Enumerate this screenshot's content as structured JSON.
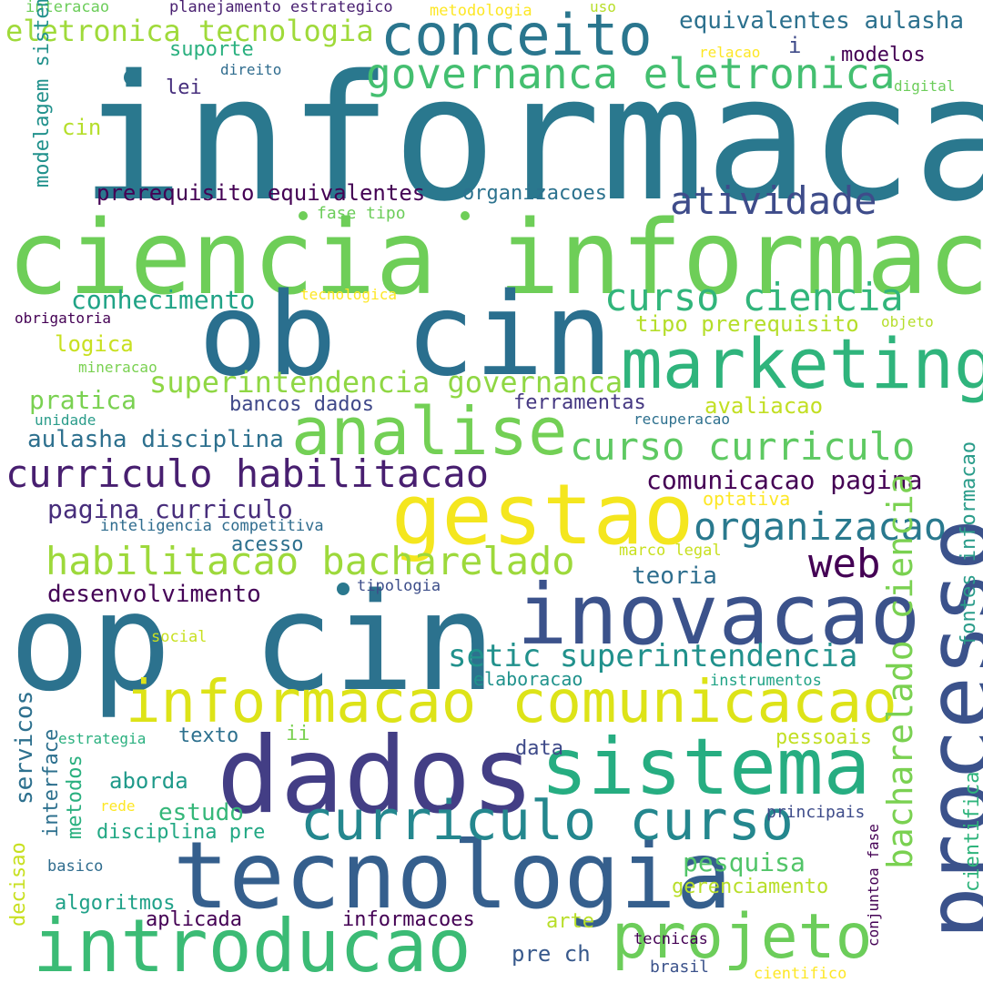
{
  "palette": {
    "dark_purple": "#482576",
    "indigo": "#414487",
    "blue": "#355f8d",
    "teal_blue": "#2a788e",
    "teal": "#21918c",
    "sea_green": "#22a884",
    "green": "#44bf70",
    "light_green": "#7ad151",
    "lime": "#bddf26",
    "yellow": "#fde725"
  },
  "words": [
    "informacao",
    "ciencia informacao",
    "ob cin",
    "op cin",
    "dados",
    "tecnologia",
    "gestao",
    "processo",
    "sistema",
    "inovacao",
    "introducao",
    "marketing",
    "analise",
    "informacao comunicacao",
    "curriculo curso",
    "projeto",
    "conceito",
    "curriculo habilitacao",
    "governanca eletronica",
    "habilitacao bacharelado",
    "curso ciencia",
    "curso curriculo",
    "bacharelado ciencia",
    "organizacao",
    "atividade",
    "setic superintendencia",
    "superintendencia governanca",
    "eletronica tecnologia",
    "web",
    "comunicacao pagina",
    "equivalentes aulasha",
    "prerequisito equivalentes",
    "aulasha disciplina",
    "pagina curriculo",
    "desenvolvimento",
    "fontes informacao",
    "conhecimento",
    "pratica",
    "organizacoes",
    "bancos dados",
    "ferramentas",
    "avaliacao",
    "teoria",
    "tipo prerequisito",
    "disciplina pre",
    "estudo",
    "aborda",
    "pesquisa",
    "algoritmos",
    "aplicada",
    "informacoes",
    "gerenciamento",
    "servicos",
    "cientifica",
    "conjuntoa fase",
    "modelagem sistemas",
    "inteligencia competitiva",
    "planejamento estrategico",
    "metodologia",
    "interacao",
    "suporte",
    "modelos",
    "lei",
    "cin",
    "fase tipo",
    "logica",
    "acesso",
    "optativa",
    "marco legal",
    "tipologia",
    "elaboracao",
    "instrumentos",
    "texto",
    "ii",
    "data",
    "pessoais",
    "interface",
    "metodos",
    "decisao",
    "pre ch",
    "arte",
    "tecnicas",
    "brasil",
    "cientifico",
    "principais",
    "basico",
    "rede",
    "estrategia",
    "social",
    "recuperacao",
    "unidade",
    "mineracao",
    "obrigatoria",
    "tecnologica",
    "objeto",
    "direito",
    "relacao",
    "digital",
    "uso",
    "i"
  ]
}
